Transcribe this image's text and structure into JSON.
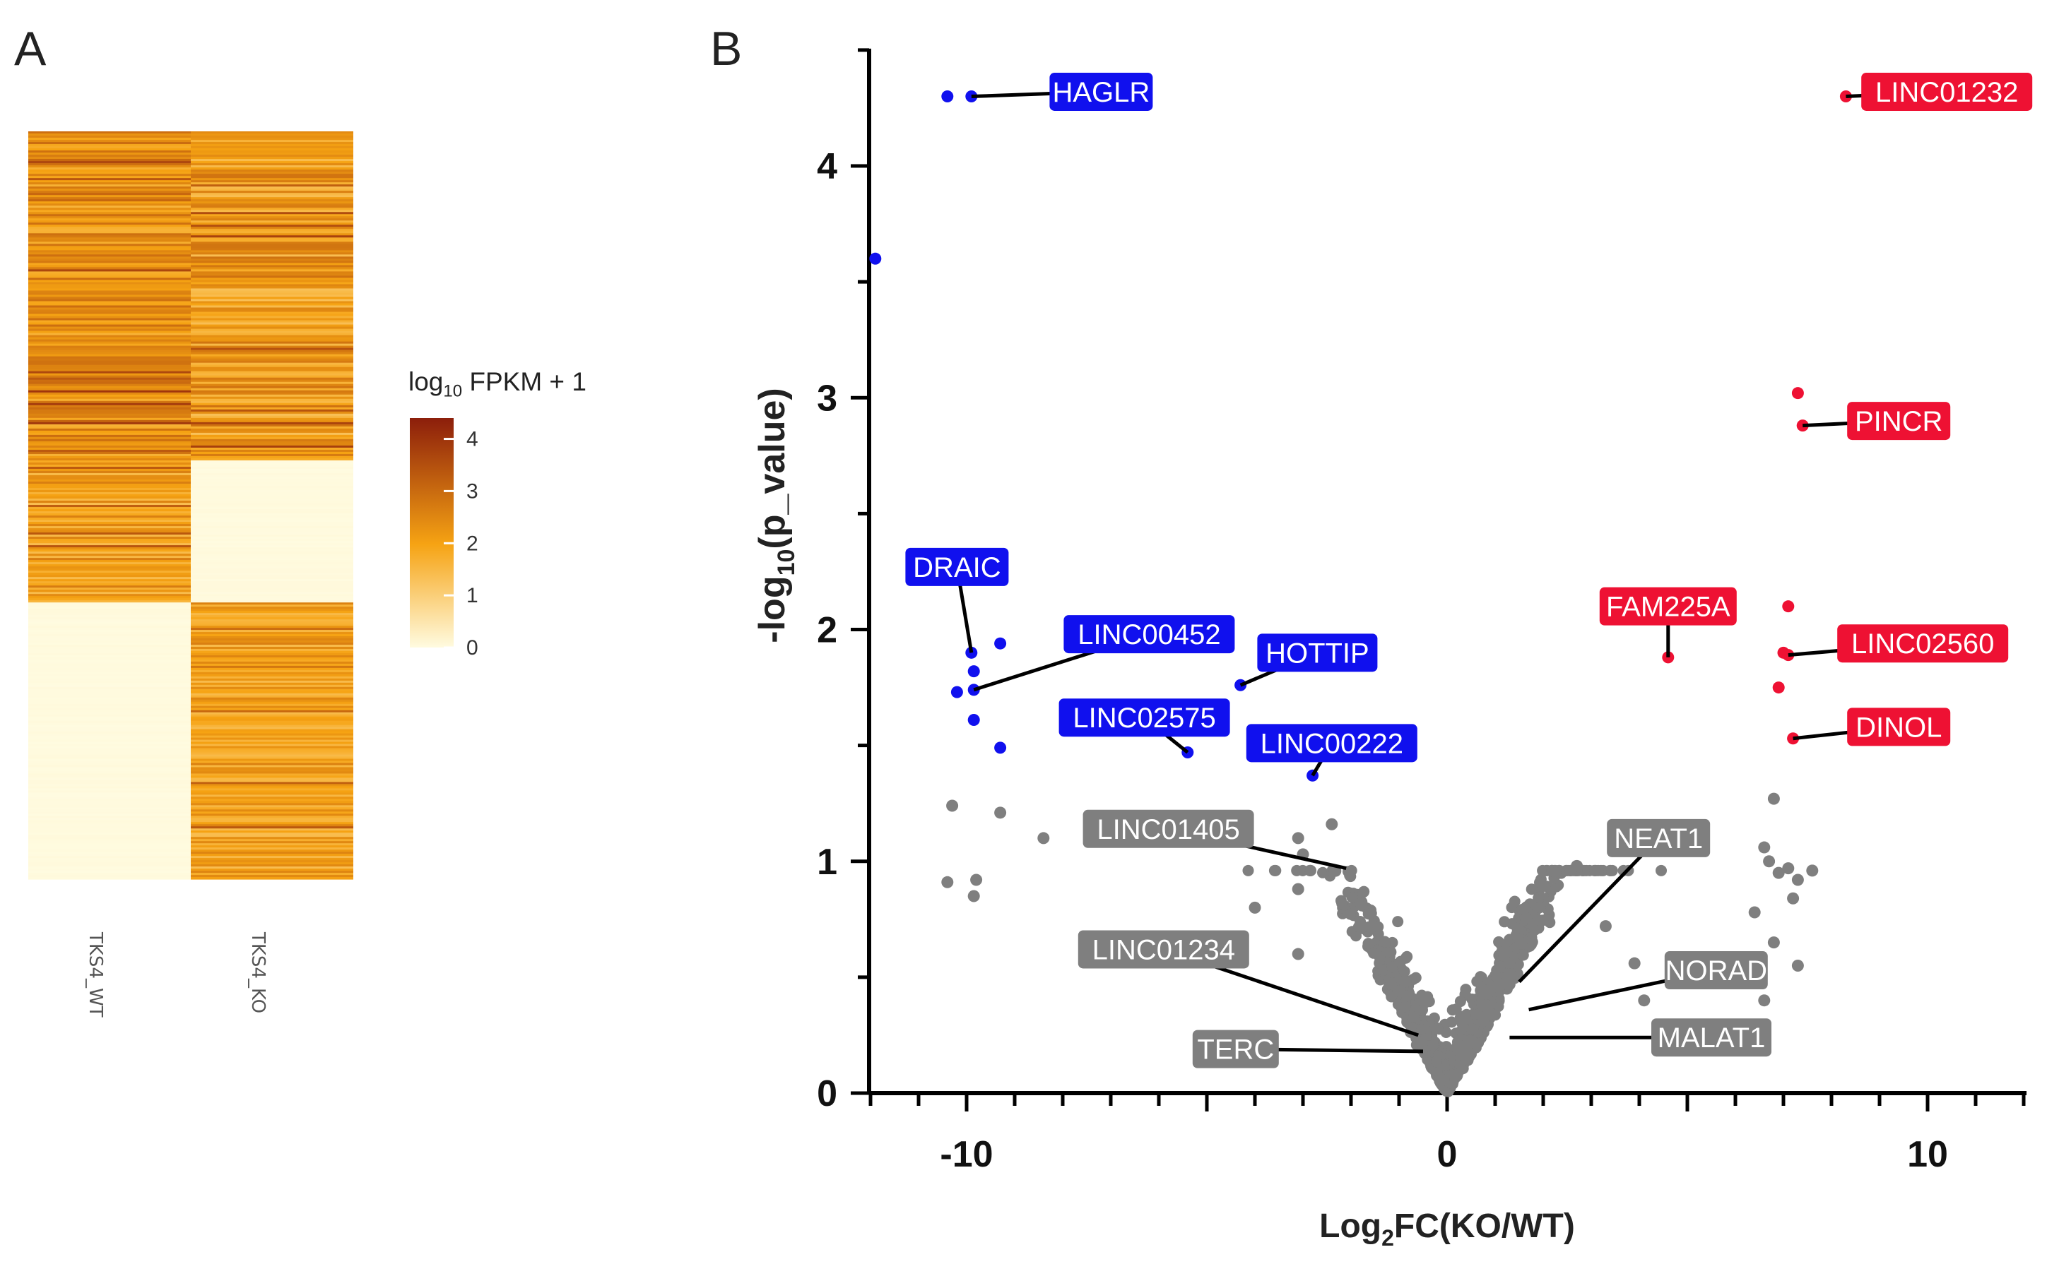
{
  "panels": {
    "a": "A",
    "b": "B"
  },
  "heatmap": {
    "columns": [
      "TKS4_WT",
      "TKS4_KO"
    ],
    "legend": {
      "title_prefix": "log",
      "title_sub": "10",
      "title_suffix": " FPKM + 1",
      "ticks": [
        0,
        1,
        2,
        3,
        4
      ],
      "max": 4.4
    },
    "colors": {
      "low": "#fffbe0",
      "mid": "#f6a313",
      "high": "#8c1e0b"
    },
    "blocks": [
      {
        "name": "shared",
        "fraction": 0.44,
        "wt_level": [
          1.6,
          3.1
        ],
        "ko_level": [
          1.3,
          2.9
        ]
      },
      {
        "name": "wt-only",
        "fraction": 0.19,
        "wt_level": [
          1.4,
          2.7
        ],
        "ko_level": [
          0,
          0.05
        ]
      },
      {
        "name": "ko-only",
        "fraction": 0.37,
        "wt_level": [
          0,
          0.05
        ],
        "ko_level": [
          1.4,
          2.6
        ]
      }
    ]
  },
  "chart_data": {
    "type": "scatter",
    "xlabel": "Log₂FC(KO/WT)",
    "xlabel_parts": {
      "pre": "Log",
      "sub": "2",
      "post": "FC(KO/WT)"
    },
    "ylabel_parts": {
      "pre": "-log",
      "sub": "10",
      "post": "(p_value)"
    },
    "xlim": [
      -12,
      12
    ],
    "ylim": [
      0,
      4.5
    ],
    "xticks": [
      -10,
      0,
      10
    ],
    "yticks": [
      0,
      1,
      2,
      3,
      4
    ],
    "colors": {
      "down": "#1010ee",
      "up": "#ee1133",
      "ns": "#7f7f7f"
    },
    "series": [
      {
        "name": "down",
        "points": [
          [
            -10.4,
            4.3
          ],
          [
            -9.9,
            4.3
          ],
          [
            -11.9,
            3.6
          ],
          [
            -9.9,
            1.9
          ],
          [
            -9.3,
            1.94
          ],
          [
            -9.85,
            1.82
          ],
          [
            -10.2,
            1.73
          ],
          [
            -9.85,
            1.74
          ],
          [
            -9.85,
            1.61
          ],
          [
            -9.3,
            1.49
          ],
          [
            -4.3,
            1.76
          ],
          [
            -5.4,
            1.47
          ],
          [
            -2.8,
            1.37
          ]
        ]
      },
      {
        "name": "up",
        "points": [
          [
            8.3,
            4.3
          ],
          [
            7.3,
            3.02
          ],
          [
            7.4,
            2.88
          ],
          [
            4.6,
            1.88
          ],
          [
            7.0,
            1.9
          ],
          [
            7.1,
            1.89
          ],
          [
            7.1,
            2.1
          ],
          [
            6.9,
            1.75
          ],
          [
            7.2,
            1.53
          ]
        ]
      },
      {
        "name": "ns_outliers",
        "points": [
          [
            -10.3,
            1.24
          ],
          [
            -9.3,
            1.21
          ],
          [
            -8.4,
            1.1
          ],
          [
            -10.4,
            0.91
          ],
          [
            -9.8,
            0.92
          ],
          [
            -9.85,
            0.85
          ],
          [
            -2.4,
            1.16
          ],
          [
            -3.1,
            1.1
          ],
          [
            -3.0,
            1.03
          ],
          [
            -3.1,
            0.88
          ],
          [
            -4.0,
            0.8
          ],
          [
            -3.1,
            0.6
          ],
          [
            2.7,
            0.98
          ],
          [
            3.3,
            0.72
          ],
          [
            3.9,
            0.56
          ],
          [
            4.1,
            0.4
          ],
          [
            6.4,
            0.78
          ],
          [
            6.6,
            1.06
          ],
          [
            6.8,
            1.27
          ],
          [
            6.7,
            1.0
          ],
          [
            6.9,
            0.95
          ],
          [
            7.1,
            0.97
          ],
          [
            7.3,
            0.92
          ],
          [
            7.6,
            0.96
          ],
          [
            7.2,
            0.84
          ],
          [
            6.8,
            0.65
          ],
          [
            7.3,
            0.55
          ],
          [
            6.6,
            0.4
          ]
        ]
      }
    ],
    "ns_cloud": {
      "count": 1600,
      "seed": 7
    },
    "annotations": [
      {
        "label": "HAGLR",
        "kind": "down",
        "point": [
          -9.9,
          4.3
        ],
        "anchor": [
          -7.2,
          4.32
        ]
      },
      {
        "label": "DRAIC",
        "kind": "down",
        "point": [
          -9.9,
          1.9
        ],
        "anchor": [
          -10.2,
          2.27
        ]
      },
      {
        "label": "LINC00452",
        "kind": "down",
        "point": [
          -9.85,
          1.74
        ],
        "anchor": [
          -6.2,
          1.98
        ]
      },
      {
        "label": "HOTTIP",
        "kind": "down",
        "point": [
          -4.3,
          1.76
        ],
        "anchor": [
          -2.7,
          1.9
        ]
      },
      {
        "label": "LINC02575",
        "kind": "down",
        "point": [
          -5.4,
          1.47
        ],
        "anchor": [
          -6.3,
          1.62
        ]
      },
      {
        "label": "LINC00222",
        "kind": "down",
        "point": [
          -2.8,
          1.37
        ],
        "anchor": [
          -2.4,
          1.51
        ]
      },
      {
        "label": "LINC01232",
        "kind": "up",
        "point": [
          8.3,
          4.3
        ],
        "anchor": [
          10.4,
          4.32
        ]
      },
      {
        "label": "PINCR",
        "kind": "up",
        "point": [
          7.4,
          2.88
        ],
        "anchor": [
          9.4,
          2.9
        ]
      },
      {
        "label": "FAM225A",
        "kind": "up",
        "point": [
          4.6,
          1.88
        ],
        "anchor": [
          4.6,
          2.1
        ]
      },
      {
        "label": "LINC02560",
        "kind": "up",
        "point": [
          7.1,
          1.89
        ],
        "anchor": [
          9.9,
          1.94
        ]
      },
      {
        "label": "DINOL",
        "kind": "up",
        "point": [
          7.2,
          1.53
        ],
        "anchor": [
          9.4,
          1.58
        ]
      },
      {
        "label": "LINC01405",
        "kind": "ns",
        "point": [
          -2.1,
          0.97
        ],
        "anchor": [
          -5.8,
          1.14
        ]
      },
      {
        "label": "NEAT1",
        "kind": "ns",
        "point": [
          1.5,
          0.48
        ],
        "anchor": [
          4.4,
          1.1
        ]
      },
      {
        "label": "LINC01234",
        "kind": "ns",
        "point": [
          -0.6,
          0.25
        ],
        "anchor": [
          -5.9,
          0.62
        ]
      },
      {
        "label": "NORAD",
        "kind": "ns",
        "point": [
          1.7,
          0.36
        ],
        "anchor": [
          5.6,
          0.53
        ]
      },
      {
        "label": "TERC",
        "kind": "ns",
        "point": [
          -0.5,
          0.18
        ],
        "anchor": [
          -4.4,
          0.19
        ]
      },
      {
        "label": "MALAT1",
        "kind": "ns",
        "point": [
          1.3,
          0.24
        ],
        "anchor": [
          5.5,
          0.24
        ]
      }
    ]
  }
}
